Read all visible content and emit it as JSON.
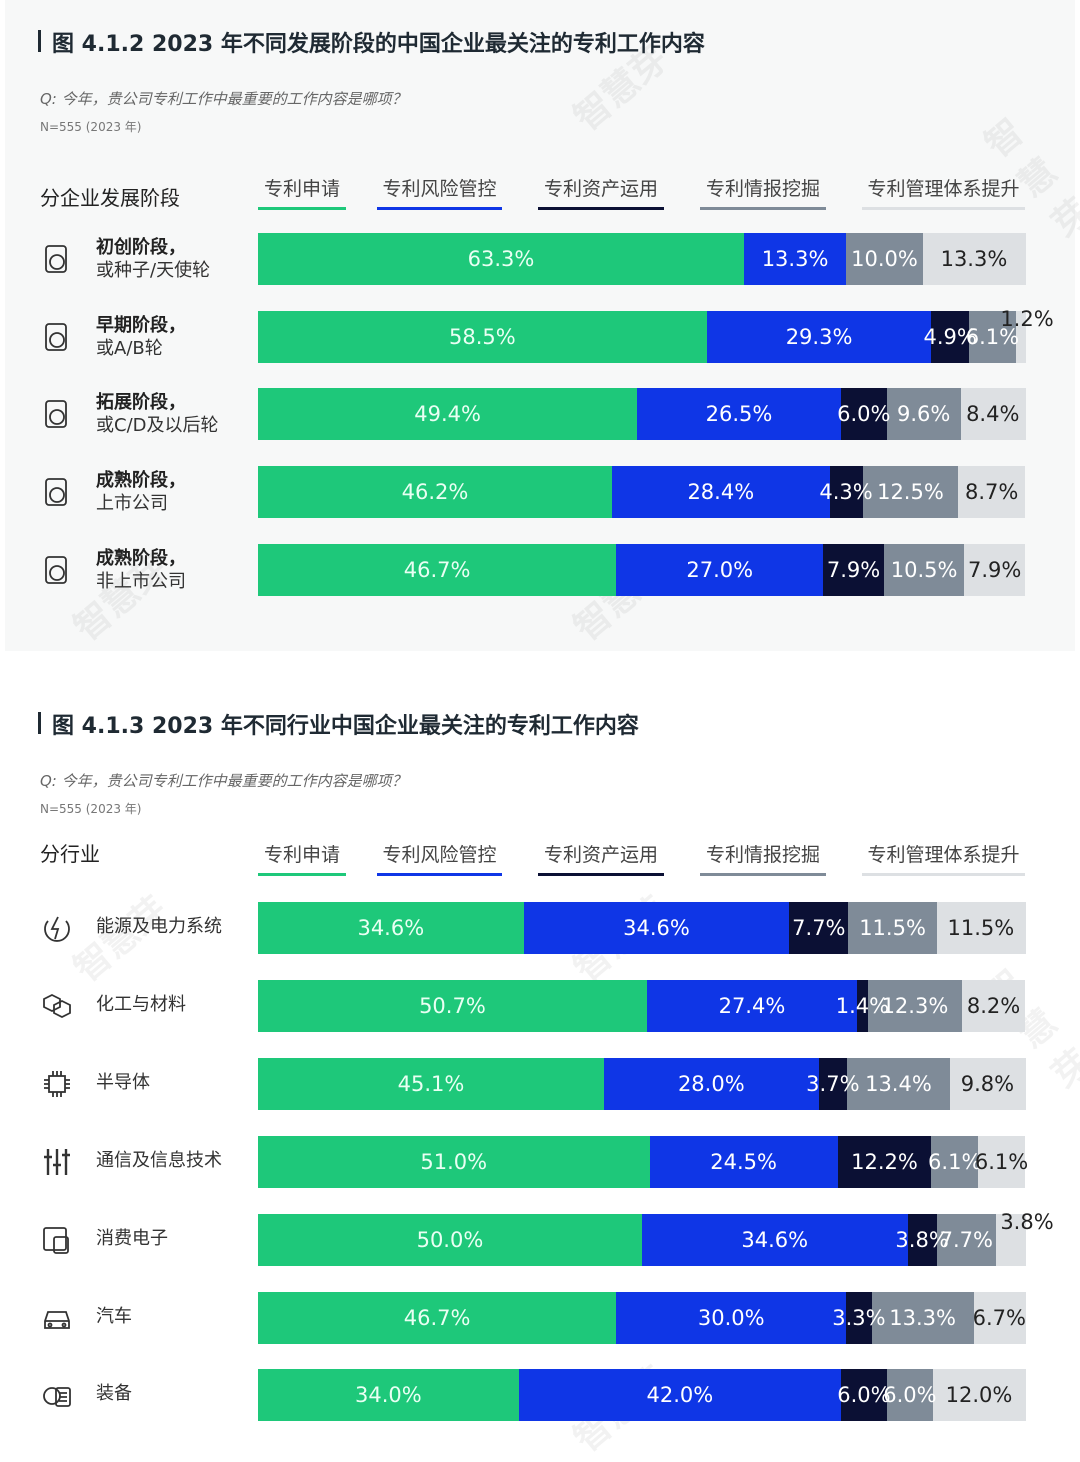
{
  "colors": {
    "s0": "#1ec87a",
    "s1": "#0f36e6",
    "s2": "#0b1034",
    "s3": "#7f8b98",
    "s4": "#dde0e3"
  },
  "watermark": "智慧芽",
  "chart1": {
    "title": "图 4.1.2 2023 年不同发展阶段的中国企业最关注的专利工作内容",
    "question": "Q: 今年，贵公司专利工作中最重要的工作内容是哪项？",
    "n": "N=555 (2023 年)",
    "row_header": "分企业发展阶段"
  },
  "chart2": {
    "title": "图 4.1.3 2023 年不同行业中国企业最关注的专利工作内容",
    "question": "Q: 今年，贵公司专利工作中最重要的工作内容是哪项？",
    "n": "N=555 (2023 年)",
    "row_header": "分行业"
  },
  "chart_data": [
    {
      "type": "bar",
      "stacked": true,
      "orientation": "horizontal",
      "title": "图 4.1.2 2023 年不同发展阶段的中国企业最关注的专利工作内容",
      "legend": [
        "专利申请",
        "专利风险管控",
        "专利资产运用",
        "专利情报挖掘",
        "专利管理体系提升"
      ],
      "categories": [
        {
          "name": "初创阶段，",
          "sub": "或种子/天使轮",
          "icon": "startup-icon"
        },
        {
          "name": "早期阶段，",
          "sub": "或A/B轮",
          "icon": "early-stage-icon"
        },
        {
          "name": "拓展阶段，",
          "sub": "或C/D及以后轮",
          "icon": "expansion-icon"
        },
        {
          "name": "成熟阶段，",
          "sub": "上市公司",
          "icon": "listed-company-icon"
        },
        {
          "name": "成熟阶段，",
          "sub": "非上市公司",
          "icon": "unlisted-company-icon"
        }
      ],
      "values": [
        [
          63.3,
          13.3,
          0,
          10.0,
          13.3
        ],
        [
          58.5,
          29.3,
          4.9,
          6.1,
          1.2
        ],
        [
          49.4,
          26.5,
          6.0,
          9.6,
          8.4
        ],
        [
          46.2,
          28.4,
          4.3,
          12.5,
          8.7
        ],
        [
          46.7,
          27.0,
          7.9,
          10.5,
          7.9
        ]
      ],
      "labels": [
        [
          "63.3%",
          "13.3%",
          "",
          "10.0%",
          "13.3%"
        ],
        [
          "58.5%",
          "29.3%",
          "4.9%",
          "6.1%",
          "1.2%"
        ],
        [
          "49.4%",
          "26.5%",
          "6.0%",
          "9.6%",
          "8.4%"
        ],
        [
          "46.2%",
          "28.4%",
          "4.3%",
          "12.5%",
          "8.7%"
        ],
        [
          "46.7%",
          "27.0%",
          "7.9%",
          "10.5%",
          "7.9%"
        ]
      ]
    },
    {
      "type": "bar",
      "stacked": true,
      "orientation": "horizontal",
      "title": "图 4.1.3 2023 年不同行业中国企业最关注的专利工作内容",
      "legend": [
        "专利申请",
        "专利风险管控",
        "专利资产运用",
        "专利情报挖掘",
        "专利管理体系提升"
      ],
      "categories": [
        {
          "name": "能源及电力系统",
          "icon": "energy-icon"
        },
        {
          "name": "化工与材料",
          "icon": "chemical-icon"
        },
        {
          "name": "半导体",
          "icon": "chip-icon"
        },
        {
          "name": "通信及信息技术",
          "icon": "signal-icon"
        },
        {
          "name": "消费电子",
          "icon": "device-icon"
        },
        {
          "name": "汽车",
          "icon": "car-icon"
        },
        {
          "name": "装备",
          "icon": "equipment-icon"
        }
      ],
      "values": [
        [
          34.6,
          34.6,
          7.7,
          11.5,
          11.5
        ],
        [
          50.7,
          27.4,
          1.4,
          12.3,
          8.2
        ],
        [
          45.1,
          28.0,
          3.7,
          13.4,
          9.8
        ],
        [
          51.0,
          24.5,
          12.2,
          6.1,
          6.1
        ],
        [
          50.0,
          34.6,
          3.8,
          7.7,
          3.8
        ],
        [
          46.7,
          30.0,
          3.3,
          13.3,
          6.7
        ],
        [
          34.0,
          42.0,
          6.0,
          6.0,
          12.0
        ]
      ],
      "labels": [
        [
          "34.6%",
          "34.6%",
          "7.7%",
          "11.5%",
          "11.5%"
        ],
        [
          "50.7%",
          "27.4%",
          "1.4%",
          "12.3%",
          "8.2%"
        ],
        [
          "45.1%",
          "28.0%",
          "3.7%",
          "13.4%",
          "9.8%"
        ],
        [
          "51.0%",
          "24.5%",
          "12.2%",
          "6.1%",
          "6.1%"
        ],
        [
          "50.0%",
          "34.6%",
          "3.8%",
          "7.7%",
          "3.8%"
        ],
        [
          "46.7%",
          "30.0%",
          "3.3%",
          "13.3%",
          "6.7%"
        ],
        [
          "34.0%",
          "42.0%",
          "6.0%",
          "6.0%",
          "12.0%"
        ]
      ]
    }
  ]
}
